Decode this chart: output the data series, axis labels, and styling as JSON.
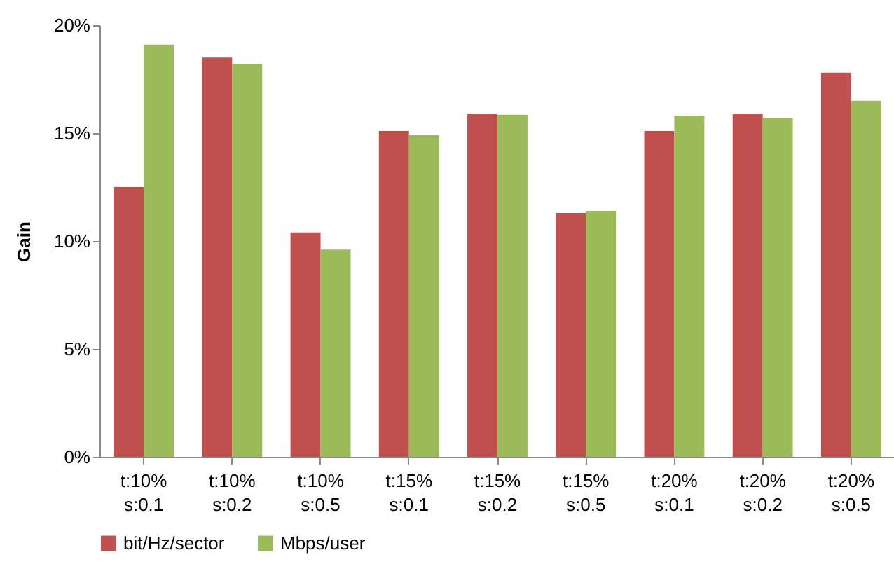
{
  "chart_data": {
    "type": "bar",
    "ylabel": "Gain",
    "categories": [
      "t:10%\ns:0.1",
      "t:10%\ns:0.2",
      "t:10%\ns:0.5",
      "t:15%\ns:0.1",
      "t:15%\ns:0.2",
      "t:15%\ns:0.5",
      "t:20%\ns:0.1",
      "t:20%\ns:0.2",
      "t:20%\ns:0.5"
    ],
    "series": [
      {
        "name": "bit/Hz/sector",
        "color": "#c0504d",
        "values": [
          12.5,
          18.5,
          10.4,
          15.1,
          15.9,
          11.3,
          15.1,
          15.9,
          17.8
        ]
      },
      {
        "name": "Mbps/user",
        "color": "#9bbb59",
        "values": [
          19.1,
          18.2,
          9.6,
          14.9,
          15.85,
          11.4,
          15.8,
          15.7,
          16.5
        ]
      }
    ],
    "ylim": [
      0,
      20
    ],
    "yticks": [
      {
        "value": 0,
        "label": "0%"
      },
      {
        "value": 5,
        "label": "5%"
      },
      {
        "value": 10,
        "label": "10%"
      },
      {
        "value": 15,
        "label": "15%"
      },
      {
        "value": 20,
        "label": "20%"
      }
    ],
    "grid": false,
    "legend": "bottom"
  }
}
